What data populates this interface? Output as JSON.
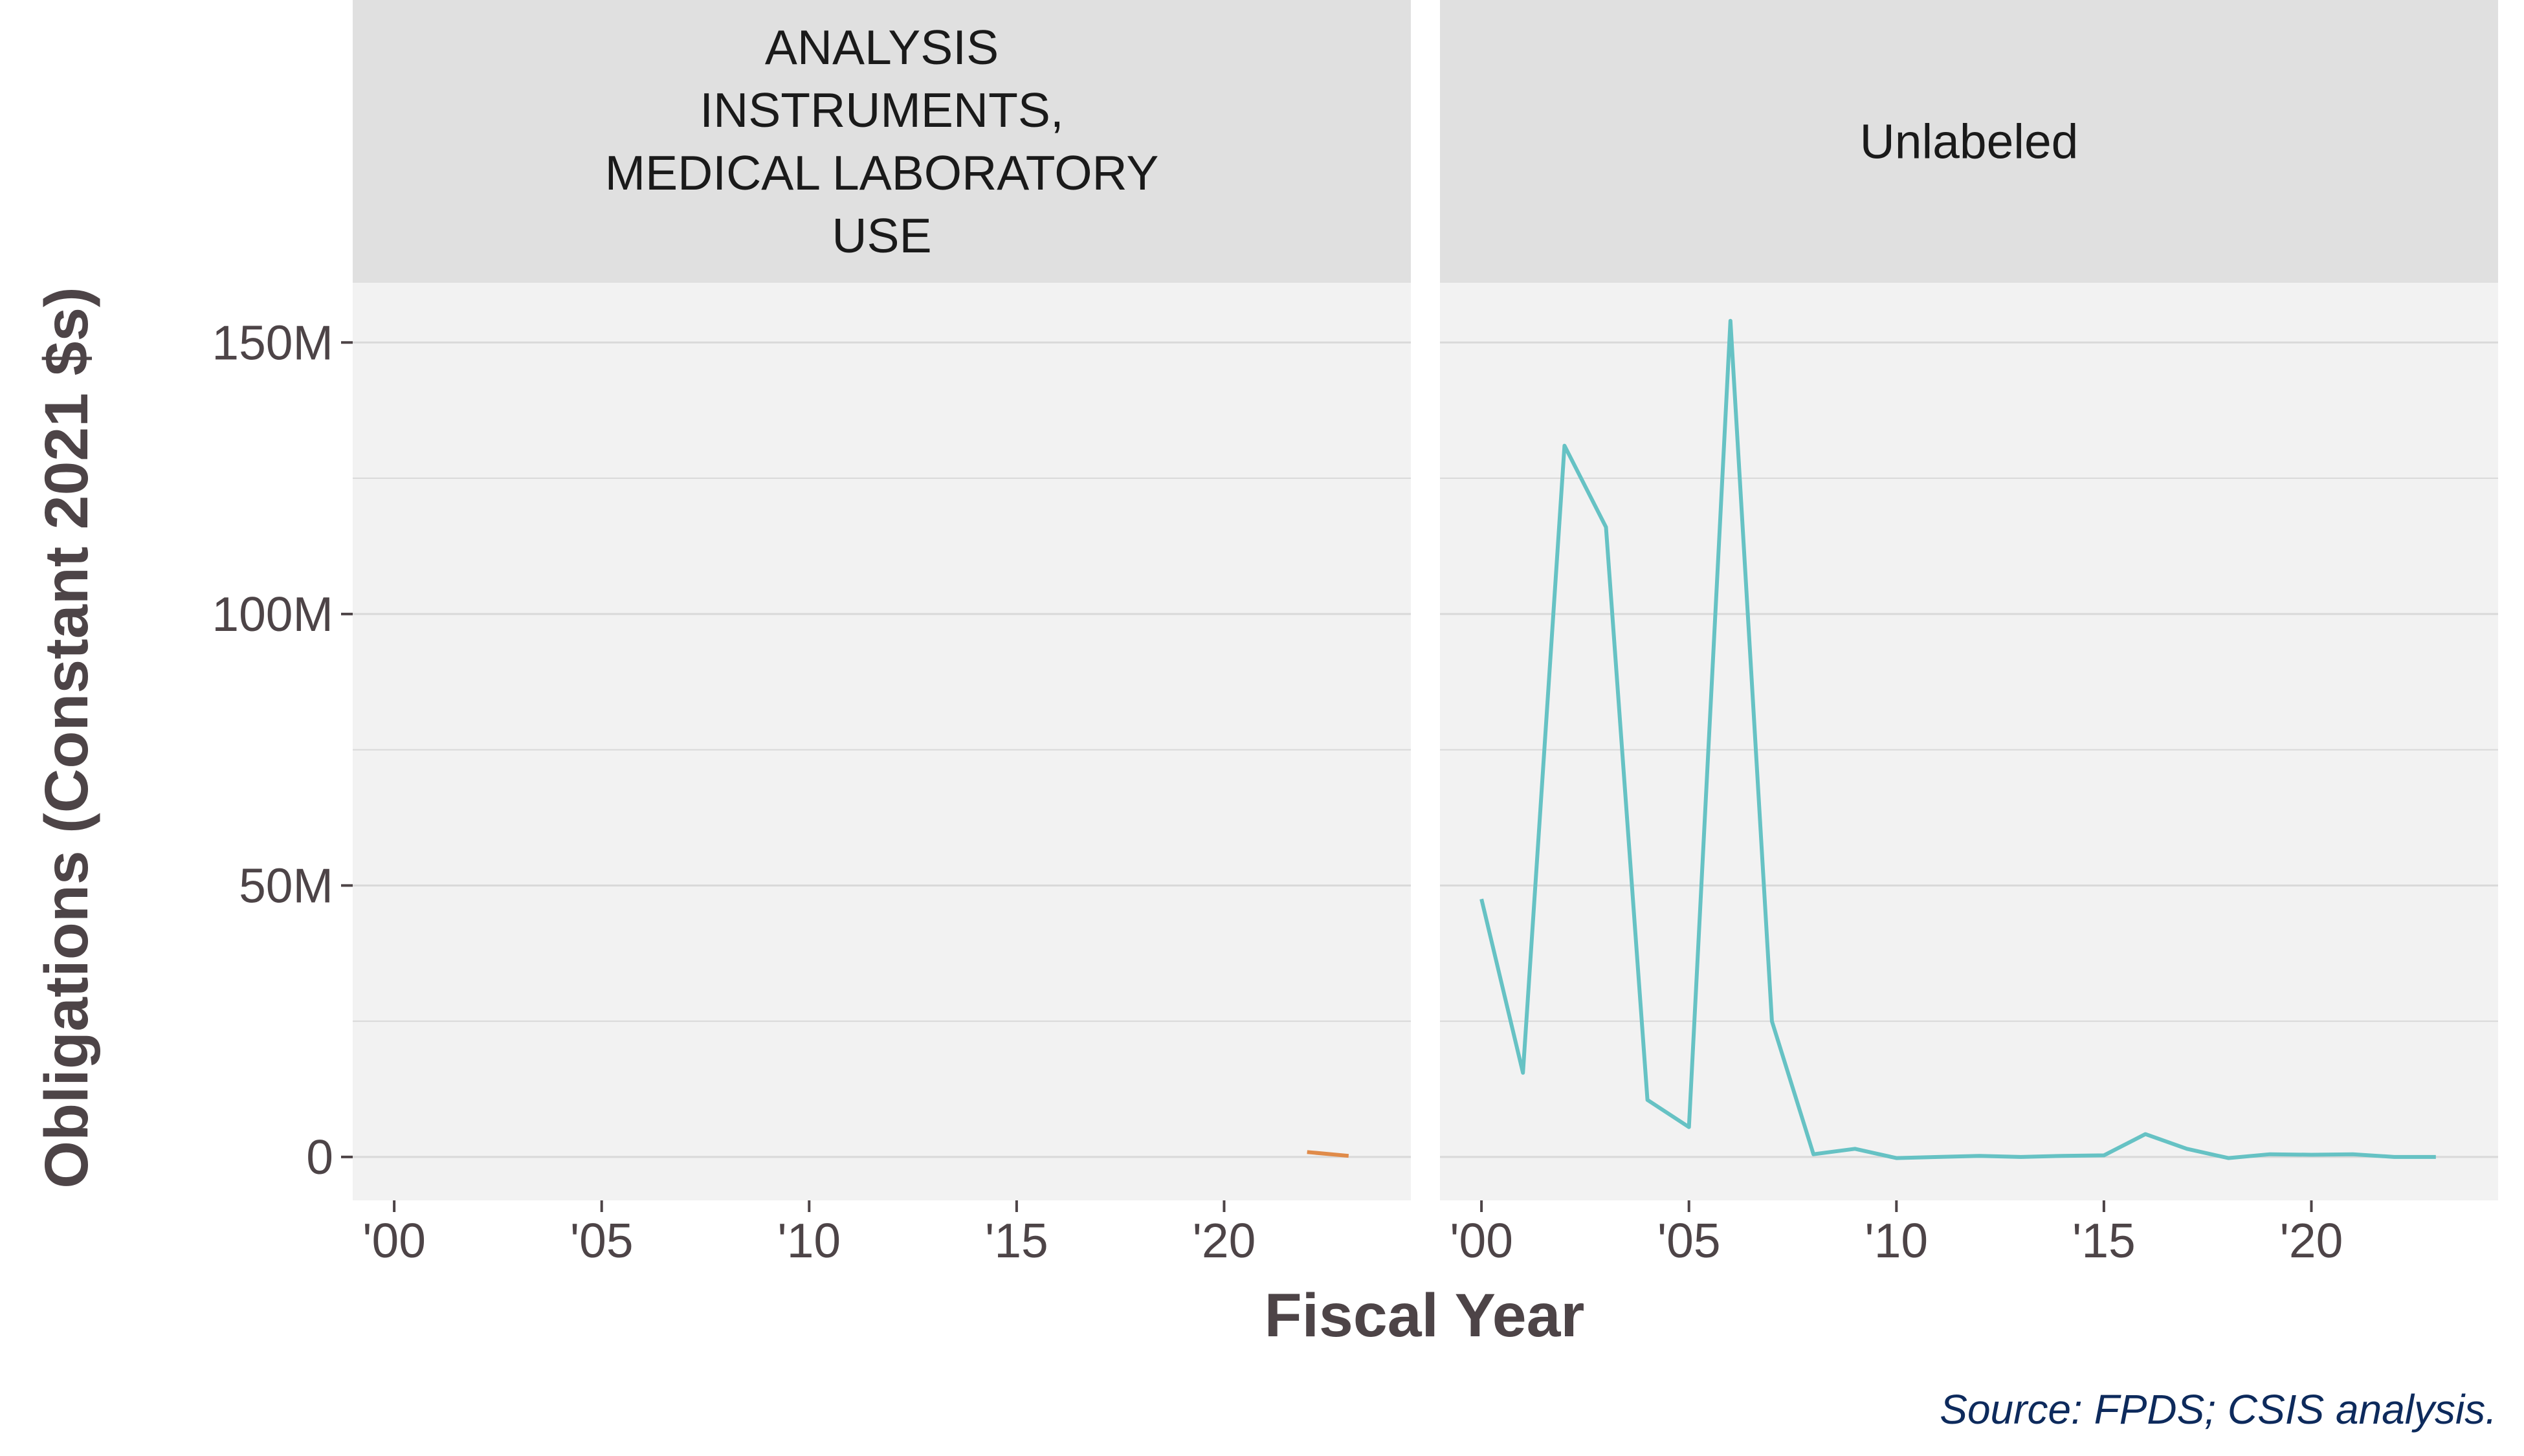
{
  "chart_data": {
    "type": "line",
    "facets": [
      {
        "strip_label": [
          "ANALYSIS",
          "INSTRUMENTS,",
          "MEDICAL LABORATORY",
          "USE"
        ],
        "series": [
          {
            "name": "ANALYSIS INSTRUMENTS, MEDICAL LABORATORY USE",
            "color": "#e08b4a",
            "x": [
              2022,
              2023
            ],
            "y": [
              0.9,
              0.2
            ]
          }
        ]
      },
      {
        "strip_label": [
          "Unlabeled"
        ],
        "series": [
          {
            "name": "Unlabeled",
            "color": "#66c2c4",
            "x": [
              2000,
              2001,
              2002,
              2003,
              2004,
              2005,
              2006,
              2007,
              2008,
              2009,
              2010,
              2011,
              2012,
              2013,
              2014,
              2015,
              2016,
              2017,
              2018,
              2019,
              2020,
              2021,
              2022,
              2023
            ],
            "y": [
              47.5,
              15.5,
              131,
              116,
              10.5,
              5.5,
              154,
              25,
              0.5,
              1.5,
              -0.2,
              0,
              0.2,
              0,
              0.2,
              0.3,
              4.2,
              1.5,
              -0.2,
              0.5,
              0.4,
              0.5,
              0,
              0
            ]
          }
        ]
      }
    ],
    "xlabel": "Fiscal Year",
    "ylabel": "Obligations (Constant 2021 $s)",
    "x_ticks": [
      2000,
      2005,
      2010,
      2015,
      2020
    ],
    "x_tick_labels": [
      "'00",
      "'05",
      "'10",
      "'15",
      "'20"
    ],
    "xlim": [
      1999,
      2024.5
    ],
    "y_ticks": [
      0,
      50,
      100,
      150
    ],
    "y_tick_labels": [
      "0",
      "50M",
      "100M",
      "150M"
    ],
    "y_minor_ticks": [
      25,
      75,
      125
    ],
    "ylim": [
      -8,
      161
    ],
    "caption": "Source: FPDS; CSIS analysis.",
    "colors": {
      "panel_bg": "#f2f2f2",
      "strip_bg": "#e0e0e0",
      "grid": "#d9d9d9",
      "text": "#4d4447"
    }
  }
}
